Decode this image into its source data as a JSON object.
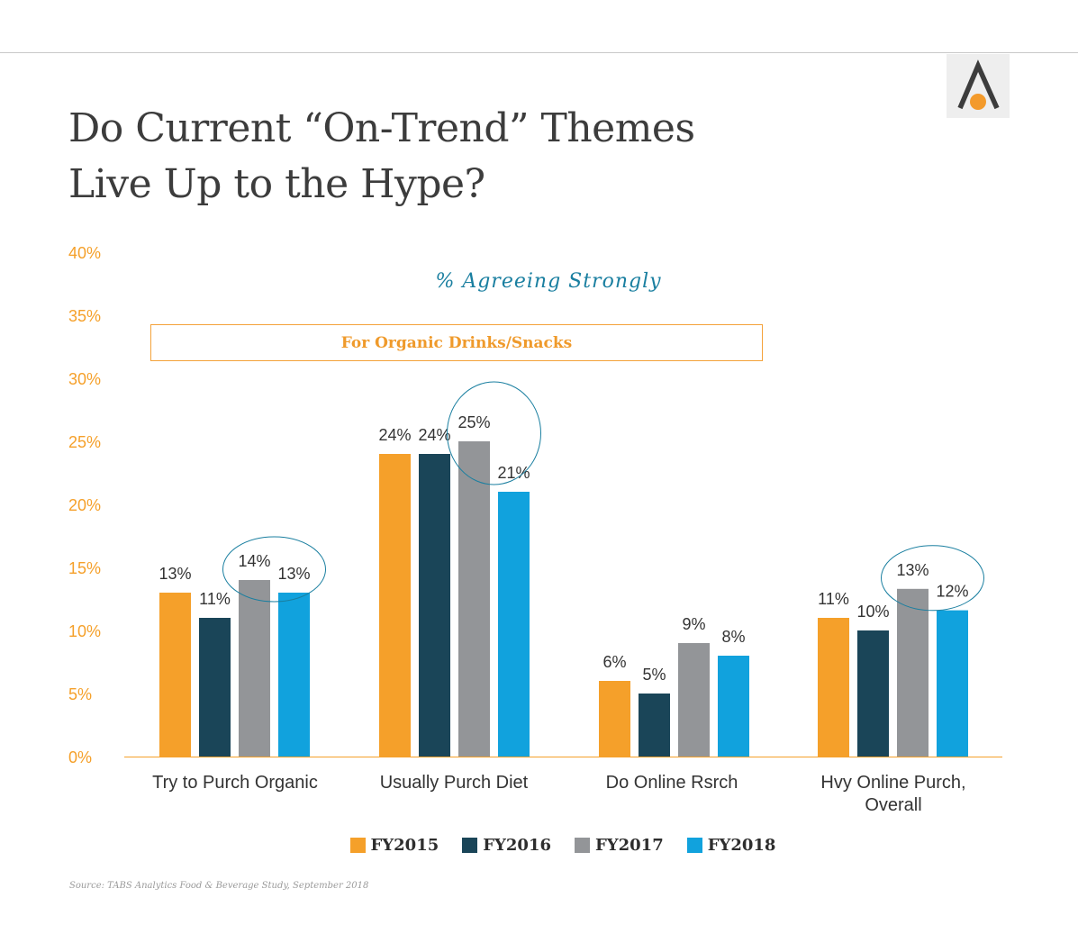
{
  "title": {
    "line1": "Do Current “On-Trend” Themes",
    "line2": "Live Up to the Hype?"
  },
  "subtitle": "% Agreeing Strongly",
  "note_box": "For Organic Drinks/Snacks",
  "source": "Source: TABS Analytics Food & Beverage Study, September 2018",
  "logo": {
    "icon": "triangle-a-logo-icon",
    "colors": {
      "stroke": "#3c3c3c",
      "dot": "#f39a2b",
      "background": "#eeeeee"
    }
  },
  "chart_data": {
    "type": "bar",
    "categories": [
      [
        "Try to Purch Organic"
      ],
      [
        "Usually Purch Diet"
      ],
      [
        "Do Online Rsrch"
      ],
      [
        "Hvy Online Purch,",
        "Overall"
      ]
    ],
    "series": [
      {
        "name": "FY2015",
        "color": "#f5a02a",
        "values": [
          13,
          24,
          6,
          11
        ]
      },
      {
        "name": "FY2016",
        "color": "#1a4558",
        "values": [
          11,
          24,
          5,
          10
        ]
      },
      {
        "name": "FY2017",
        "color": "#939598",
        "values": [
          14,
          25,
          9,
          13.3
        ]
      },
      {
        "name": "FY2018",
        "color": "#11a2dd",
        "values": [
          13,
          21,
          8,
          11.6
        ]
      }
    ],
    "data_labels": [
      [
        "13%",
        "24%",
        "6%",
        "11%"
      ],
      [
        "11%",
        "24%",
        "5%",
        "10%"
      ],
      [
        "14%",
        "25%",
        "9%",
        "13%"
      ],
      [
        "13%",
        "21%",
        "8%",
        "12%"
      ]
    ],
    "ylim": [
      0,
      40
    ],
    "yticks": [
      "0%",
      "5%",
      "10%",
      "15%",
      "20%",
      "25%",
      "30%",
      "35%",
      "40%"
    ],
    "ytick_values": [
      0,
      5,
      10,
      15,
      20,
      25,
      30,
      35,
      40
    ],
    "highlighted_pairs": [
      {
        "category": 0,
        "series": [
          "FY2017",
          "FY2018"
        ]
      },
      {
        "category": 1,
        "series": [
          "FY2017",
          "FY2018"
        ]
      },
      {
        "category": 3,
        "series": [
          "FY2017",
          "FY2018"
        ]
      }
    ],
    "colors": {
      "axis": "#f5a02a",
      "tick_text": "#f5a02a",
      "label_text": "#333333",
      "category_text": "#333333",
      "highlight": "#1a7fa0"
    },
    "grid": false,
    "legend_position": "bottom"
  }
}
